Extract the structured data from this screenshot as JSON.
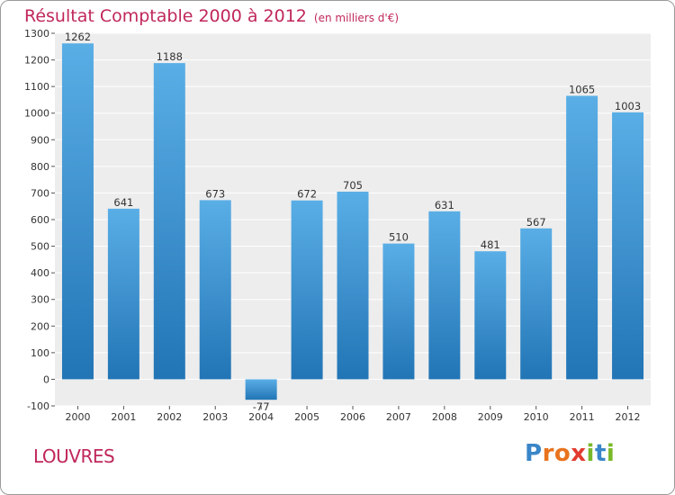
{
  "chart_data": {
    "type": "bar",
    "title": "Résultat Comptable 2000 à 2012",
    "unit": "(en milliers d'€)",
    "location": "LOUVRES",
    "categories": [
      "2000",
      "2001",
      "2002",
      "2003",
      "2004",
      "2005",
      "2006",
      "2007",
      "2008",
      "2009",
      "2010",
      "2011",
      "2012"
    ],
    "values": [
      1262,
      641,
      1188,
      673,
      -77,
      672,
      705,
      510,
      631,
      481,
      567,
      1065,
      1003
    ],
    "value_labels": [
      "1262",
      "641",
      "1188",
      "673",
      "-77",
      "672",
      "705",
      "510",
      "631",
      "481",
      "567",
      "1065",
      "1003"
    ],
    "ylim": [
      -100,
      1300
    ],
    "yticks": [
      -100,
      0,
      100,
      200,
      300,
      400,
      500,
      600,
      700,
      800,
      900,
      1000,
      1100,
      1200,
      1300
    ],
    "grid": true,
    "bar_color_top": "#5aaee6",
    "bar_color_bottom": "#2275b5",
    "background_color": "#ededed",
    "grid_color": "#ffffff",
    "accent_color": "#c0275a"
  },
  "logo": {
    "letters": [
      {
        "ch": "P",
        "color": "#3a86c8"
      },
      {
        "ch": "r",
        "color": "#e8731e"
      },
      {
        "ch": "o",
        "color": "#e8731e"
      },
      {
        "ch": "x",
        "color": "#e23b2f"
      },
      {
        "ch": "i",
        "color": "#79b829"
      },
      {
        "ch": "t",
        "color": "#3a86c8"
      },
      {
        "ch": "i",
        "color": "#79b829"
      }
    ]
  }
}
